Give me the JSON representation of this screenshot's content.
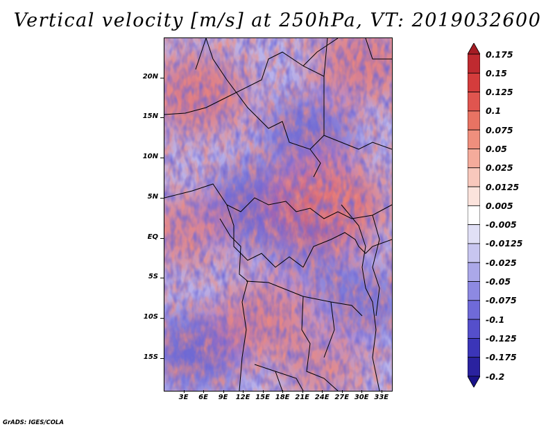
{
  "title": "Vertical velocity [m/s] at 250hPa, VT: 2019032600",
  "footer": "GrADS: IGES/COLA",
  "lat_labels": [
    "20N",
    "15N",
    "10N",
    "5N",
    "EQ",
    "5S",
    "10S",
    "15S"
  ],
  "lon_labels": [
    "3E",
    "6E",
    "9E",
    "12E",
    "15E",
    "18E",
    "21E",
    "24E",
    "27E",
    "30E",
    "33E"
  ],
  "colorbar": {
    "labels": [
      "0.175",
      "0.15",
      "0.125",
      "0.1",
      "0.075",
      "0.05",
      "0.025",
      "0.0125",
      "0.005",
      "-0.005",
      "-0.0125",
      "-0.025",
      "-0.05",
      "-0.075",
      "-0.1",
      "-0.125",
      "-0.175",
      "-0.2"
    ],
    "colors": [
      "#a51c24",
      "#bf2a30",
      "#d43c3c",
      "#e0554f",
      "#e87363",
      "#ef8f7d",
      "#f4ab9b",
      "#f8c8bc",
      "#fbe3dc",
      "#ffffff",
      "#e1e0f6",
      "#c8c6f0",
      "#aba8e9",
      "#8d89e2",
      "#6f6ad8",
      "#554fcb",
      "#3b35b8",
      "#2a229f",
      "#1a138a"
    ]
  },
  "map": {
    "lat_range": [
      -19,
      25
    ],
    "lon_range": [
      0,
      34.5
    ],
    "regional_bias": [
      {
        "lon": 5,
        "lat": 18,
        "value": 0.09
      },
      {
        "lon": 30,
        "lat": 22,
        "value": 0.08
      },
      {
        "lon": 22,
        "lat": 13,
        "value": -0.07
      },
      {
        "lon": 14,
        "lat": 4,
        "value": -0.09
      },
      {
        "lon": 25,
        "lat": 4,
        "value": 0.12
      },
      {
        "lon": 2,
        "lat": 1,
        "value": 0.06
      },
      {
        "lon": 5,
        "lat": -14,
        "value": -0.08
      },
      {
        "lon": 15,
        "lat": -10,
        "value": 0.07
      },
      {
        "lon": 30,
        "lat": -8,
        "value": -0.05
      },
      {
        "lon": 22,
        "lat": -2,
        "value": -0.03
      },
      {
        "lon": 24,
        "lat": -16,
        "value": 0.04
      }
    ],
    "country_borders": "outlines"
  }
}
